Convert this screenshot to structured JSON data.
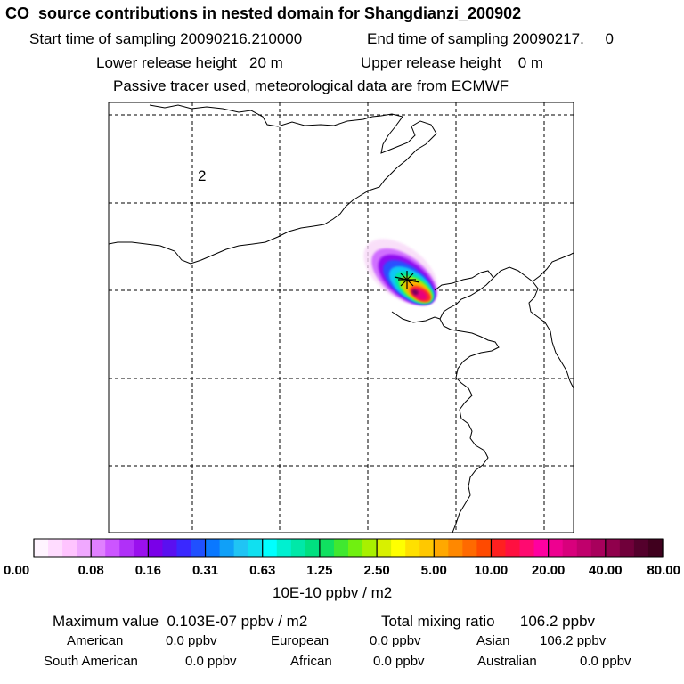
{
  "header": {
    "title": "CO  source contributions in nested domain for Shangdianzi_200902",
    "start_label": "Start time of sampling 20090216.210000",
    "end_label": "End time of sampling 20090217.     0",
    "lower_label": "Lower release height   20 m",
    "upper_label": "Upper release height    0 m",
    "tracer_label": "Passive tracer used, meteorological data are from ECMWF"
  },
  "map": {
    "region_label": "2"
  },
  "chart_data": {
    "type": "heatmap",
    "title": "CO  source contributions in nested domain for Shangdianzi_200902",
    "colorbar_ticks": [
      "0.00",
      "0.08",
      "0.16",
      "0.31",
      "0.63",
      "1.25",
      "2.50",
      "5.00",
      "10.00",
      "20.00",
      "40.00",
      "80.00"
    ],
    "colorbar_unit": "10E-10 ppbv / m2",
    "colorbar_colors": [
      "#fff4ff",
      "#ffdcff",
      "#ffc4ff",
      "#f0a8ff",
      "#e080ff",
      "#cc55ff",
      "#b030f8",
      "#9a10ee",
      "#7a00e8",
      "#5a10f0",
      "#3a28ff",
      "#2050ff",
      "#0a78ff",
      "#10a0f8",
      "#20c4f4",
      "#10e0f0",
      "#00ffff",
      "#00f0d0",
      "#00e8a8",
      "#00e080",
      "#10e060",
      "#40e830",
      "#70f010",
      "#a8f000",
      "#d8f000",
      "#ffff00",
      "#ffe000",
      "#ffc800",
      "#ffa800",
      "#ff8800",
      "#ff6a00",
      "#ff4a00",
      "#ff2020",
      "#ff1040",
      "#ff0a70",
      "#ff00a0",
      "#ee0090",
      "#d8007c",
      "#c0006c",
      "#a8005c",
      "#90004c",
      "#70003a",
      "#54002c",
      "#40001e"
    ],
    "plume_levels": [
      {
        "level": "0.08",
        "color": "#f8d8f8"
      },
      {
        "level": "0.16",
        "color": "#d070ff"
      },
      {
        "level": "0.31",
        "color": "#9010f0"
      },
      {
        "level": "0.63",
        "color": "#2a50ff"
      },
      {
        "level": "1.25",
        "color": "#10c8f4"
      },
      {
        "level": "2.50",
        "color": "#00e8a0"
      },
      {
        "level": "5.00",
        "color": "#a8f000"
      },
      {
        "level": "10.00",
        "color": "#ffb000"
      },
      {
        "level": "20.00",
        "color": "#ff2030"
      },
      {
        "level": "40.00",
        "color": "#e8007c"
      },
      {
        "level": "80.00",
        "color": "#7a005a"
      }
    ],
    "grid": true,
    "receptor_marker": "Shangdianzi"
  },
  "stats": {
    "max_label": "Maximum value  0.103E-07 ppbv / m2",
    "total_label": "Total mixing ratio      106.2 ppbv",
    "rows": [
      [
        {
          "name": "American",
          "value": "0.0 ppbv"
        },
        {
          "name": "European",
          "value": "0.0 ppbv"
        },
        {
          "name": "Asian",
          "value": "106.2 ppbv"
        }
      ],
      [
        {
          "name": "South American",
          "value": "0.0 ppbv"
        },
        {
          "name": "African",
          "value": "0.0 ppbv"
        },
        {
          "name": "Australian",
          "value": "0.0 ppbv"
        }
      ]
    ]
  }
}
